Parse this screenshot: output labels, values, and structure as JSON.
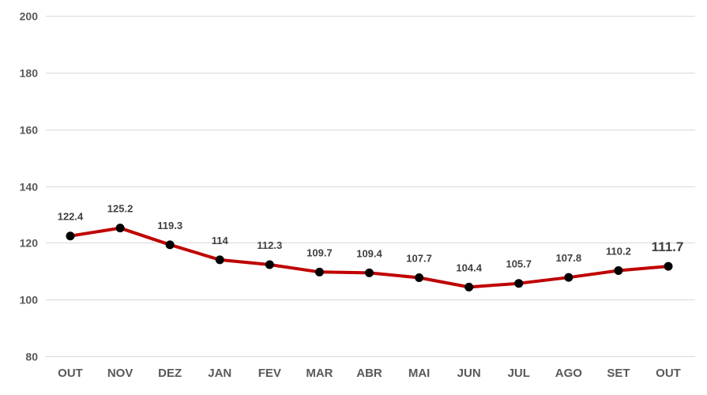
{
  "chart_data": {
    "type": "line",
    "title": "",
    "xlabel": "",
    "ylabel": "",
    "categories": [
      "OUT",
      "NOV",
      "DEZ",
      "JAN",
      "FEV",
      "MAR",
      "ABR",
      "MAI",
      "JUN",
      "JUL",
      "AGO",
      "SET",
      "OUT"
    ],
    "series": [
      {
        "values": [
          122.4,
          125.2,
          119.3,
          114,
          112.3,
          109.7,
          109.4,
          107.7,
          104.4,
          105.7,
          107.8,
          110.2,
          111.7
        ]
      }
    ],
    "data_labels": [
      "122.4",
      "125.2",
      "119.3",
      "114",
      "112.3",
      "109.7",
      "109.4",
      "107.7",
      "104.4",
      "105.7",
      "107.8",
      "110.2",
      "111.7"
    ],
    "ylim": [
      80,
      200
    ],
    "y_ticks": [
      80,
      100,
      120,
      140,
      160,
      180,
      200
    ],
    "y_tick_labels": [
      "80",
      "100",
      "120",
      "140",
      "160",
      "180",
      "200"
    ],
    "grid": true,
    "legend": "none",
    "colors": {
      "line": "#c00000",
      "marker": "#000000",
      "highlight_label": "#c00000",
      "label": "#404040",
      "tick": "#595959",
      "grid": "#d9d9d9"
    },
    "highlight_last_label": true
  }
}
